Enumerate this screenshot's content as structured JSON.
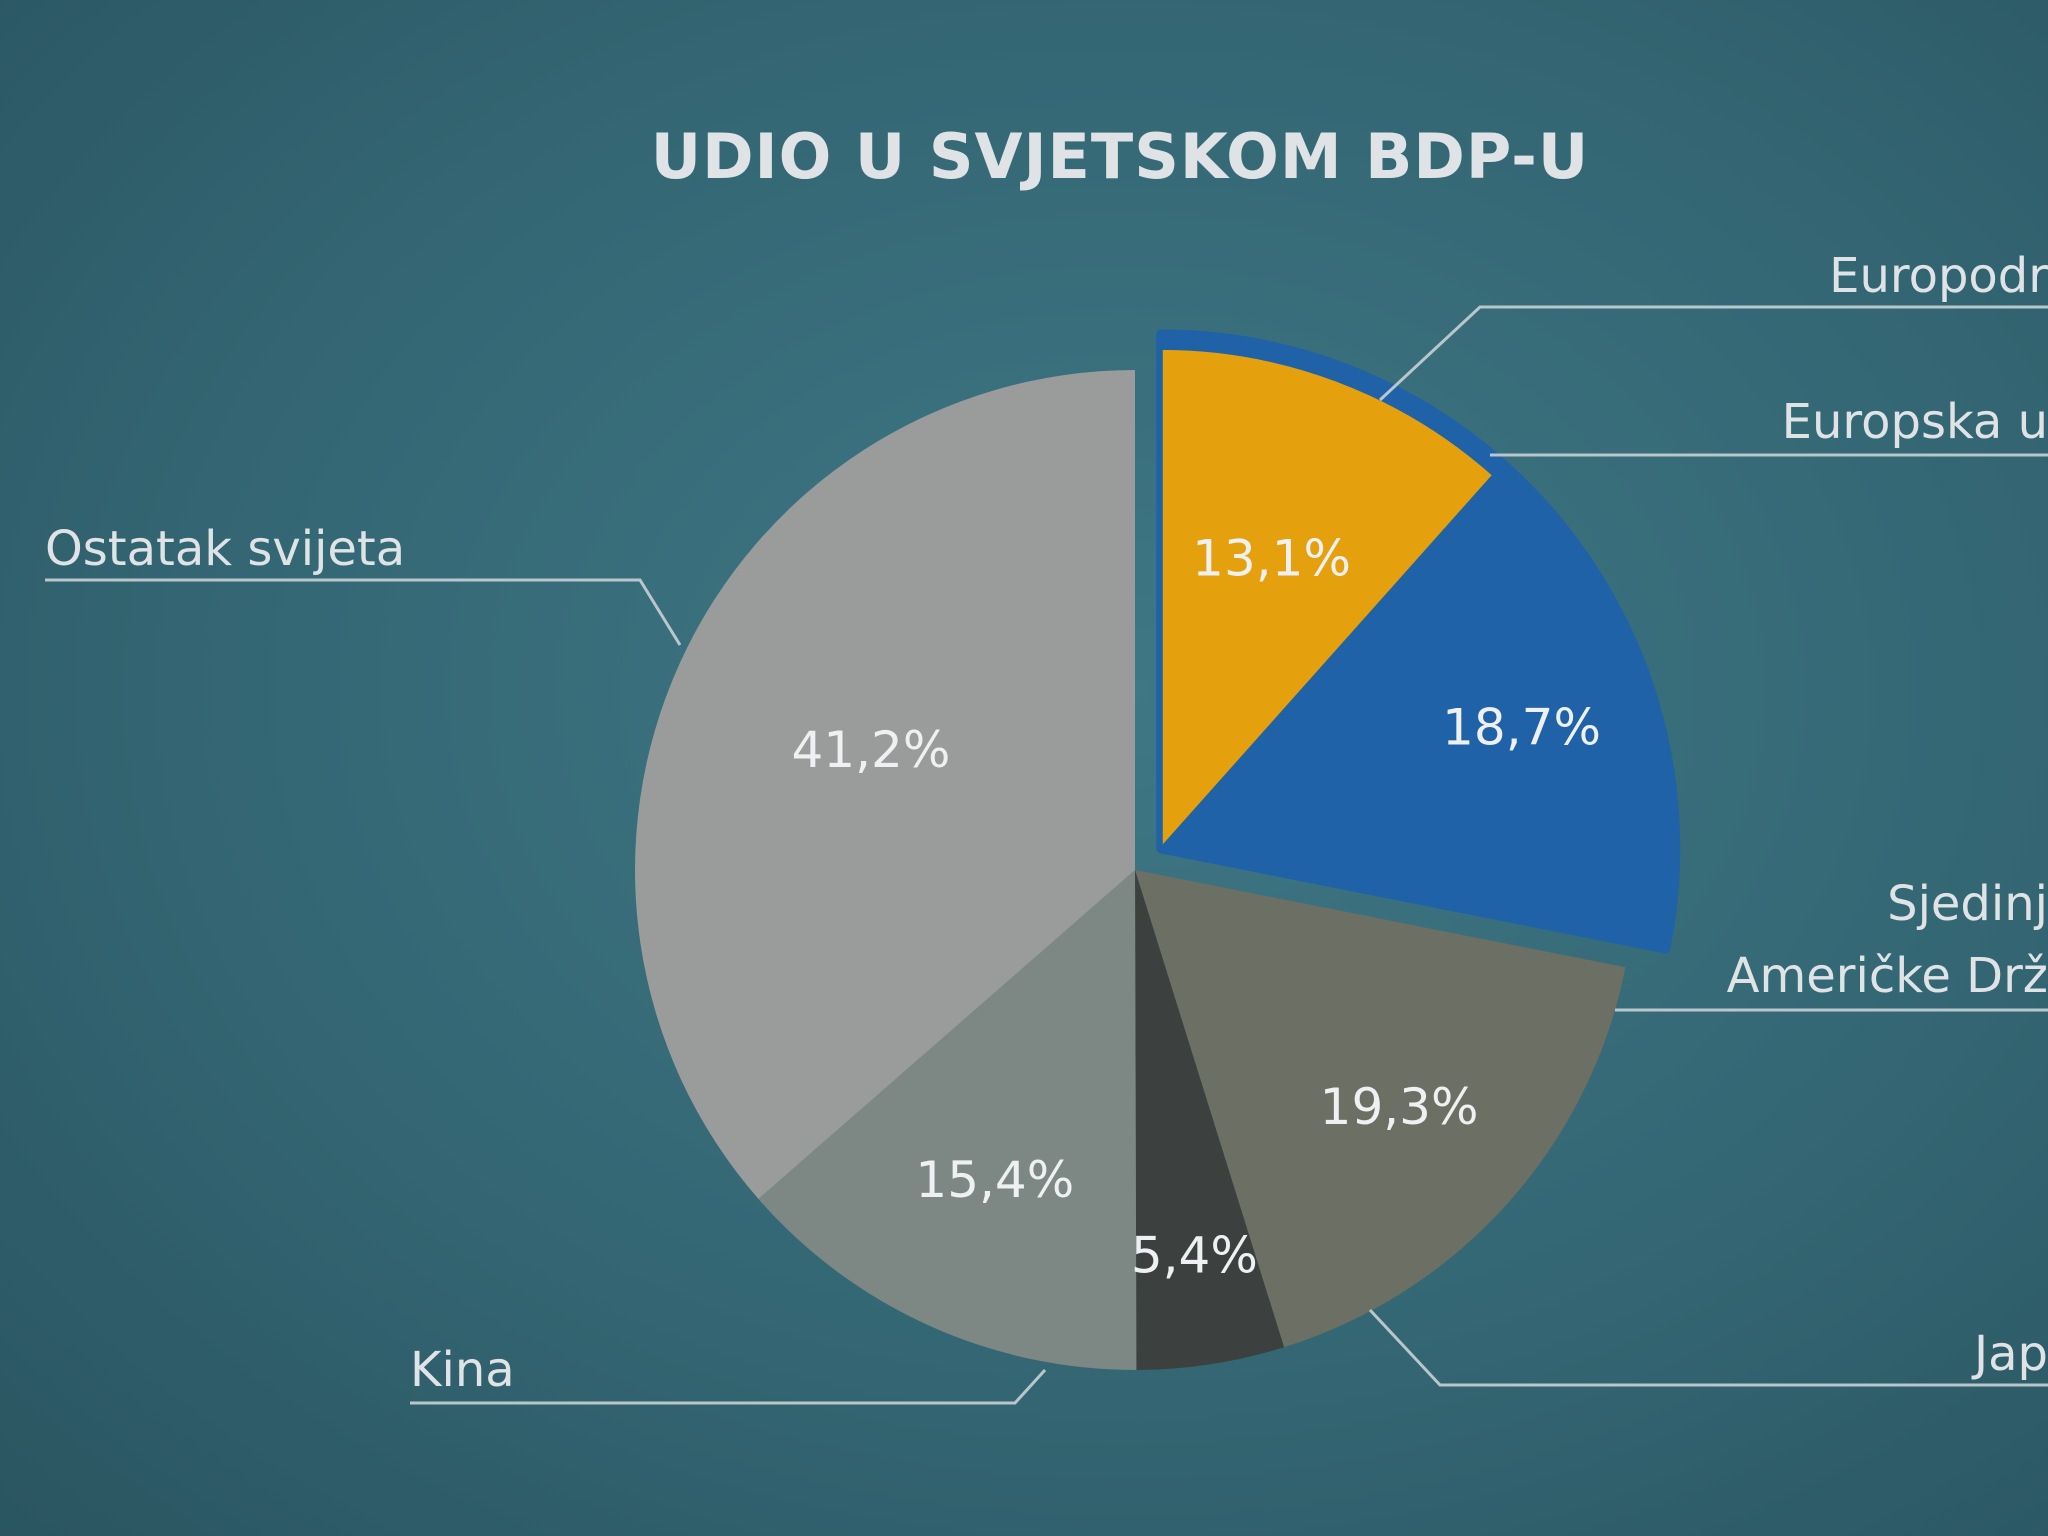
{
  "chart_data": {
    "type": "pie",
    "title": "UDIO U SVJETSKOM BDP-U",
    "slices": [
      {
        "label": "Europodr",
        "value": 13.1,
        "value_label": "13,1%",
        "color": "#e5a00d"
      },
      {
        "label": "Europska u",
        "value": 18.7,
        "value_label": "18,7%",
        "color": "#1f62a8"
      },
      {
        "label": "Sjedinj\nAmeričke Drž",
        "value": 19.3,
        "value_label": "19,3%",
        "color": "#6c6f64"
      },
      {
        "label": "Jap",
        "value": 5.4,
        "value_label": "5,4%",
        "color": "#3c4140"
      },
      {
        "label": "Kina",
        "value": 15.4,
        "value_label": "15,4%",
        "color": "#7d8885"
      },
      {
        "label": "Ostatak svijeta",
        "value": 41.2,
        "value_label": "41,2%",
        "color": "#999c9b"
      }
    ],
    "highlight_color": "#1f62a8",
    "legend": "leader-lines"
  }
}
